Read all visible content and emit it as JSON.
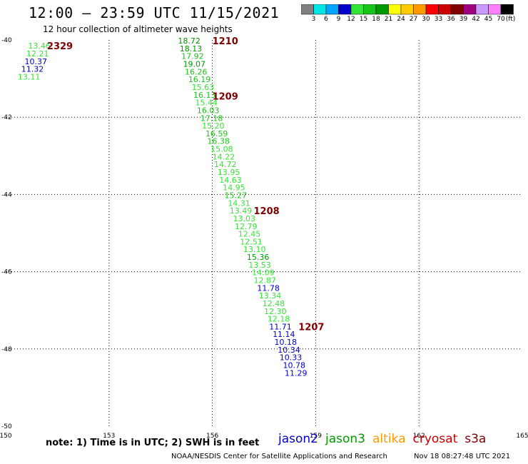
{
  "header": {
    "title": "12:00 – 23:59 UTC 11/15/2021",
    "subtitle": "12 hour collection of altimeter wave heights"
  },
  "colorbar": {
    "colors": [
      "#808080",
      "#00e5e5",
      "#00a6ff",
      "#0000cc",
      "#33e533",
      "#19c419",
      "#009900",
      "#ffff00",
      "#ffcc00",
      "#ff9900",
      "#ff0000",
      "#cc0000",
      "#800000",
      "#a0007f",
      "#cc99ff",
      "#ff80ff",
      "#000000"
    ],
    "labels": [
      "3",
      "6",
      "9",
      "12",
      "15",
      "18",
      "21",
      "24",
      "27",
      "30",
      "33",
      "36",
      "39",
      "42",
      "45",
      "70"
    ],
    "unit": "(ft)"
  },
  "note": "note: 1) Time is in UTC; 2) SWH is in feet",
  "legend": [
    {
      "name": "jason2",
      "color": "#0000cc"
    },
    {
      "name": "jason3",
      "color": "#009900"
    },
    {
      "name": "altika",
      "color": "#ff9900"
    },
    {
      "name": "cryosat",
      "color": "#cc0000"
    },
    {
      "name": "s3a",
      "color": "#800000"
    }
  ],
  "footer": {
    "left": "NOAA/NESDIS Center for Satellite Applications and Research",
    "right": "Nov 18 08:27:48 UTC 2021"
  },
  "chart_data": {
    "type": "scatter",
    "xlim": [
      150,
      165
    ],
    "ylim": [
      -50,
      -40
    ],
    "x_ticks": [
      150,
      153,
      156,
      159,
      162,
      165
    ],
    "x_tick_labels": [
      "150",
      "153",
      "156",
      "159",
      "162",
      "165"
    ],
    "y_ticks": [
      -40,
      -42,
      -44,
      -46,
      -48,
      -50
    ],
    "y_tick_labels": [
      "-40",
      "-42",
      "-44",
      "-46",
      "-48",
      "-50"
    ],
    "grid": true,
    "points": [
      {
        "x": 150.65,
        "y": -40.15,
        "value": "13.46",
        "color": "#33e533"
      },
      {
        "x": 150.6,
        "y": -40.35,
        "value": "12.21",
        "color": "#33e533"
      },
      {
        "x": 150.55,
        "y": -40.55,
        "value": "10.37",
        "color": "#0000cc"
      },
      {
        "x": 150.45,
        "y": -40.75,
        "value": "11.32",
        "color": "#0000cc"
      },
      {
        "x": 150.35,
        "y": -40.95,
        "value": "13.11",
        "color": "#33e533"
      },
      {
        "x": 155.0,
        "y": -40.02,
        "value": "18.72",
        "color": "#009900"
      },
      {
        "x": 155.05,
        "y": -40.22,
        "value": "18.13",
        "color": "#009900"
      },
      {
        "x": 155.1,
        "y": -40.42,
        "value": "17.92",
        "color": "#19c419"
      },
      {
        "x": 155.15,
        "y": -40.62,
        "value": "19.07",
        "color": "#009900"
      },
      {
        "x": 155.2,
        "y": -40.82,
        "value": "16.26",
        "color": "#19c419"
      },
      {
        "x": 155.3,
        "y": -41.02,
        "value": "16.19",
        "color": "#19c419"
      },
      {
        "x": 155.4,
        "y": -41.22,
        "value": "15.63",
        "color": "#33e533"
      },
      {
        "x": 155.45,
        "y": -41.42,
        "value": "16.13",
        "color": "#19c419"
      },
      {
        "x": 155.5,
        "y": -41.62,
        "value": "15.44",
        "color": "#33e533"
      },
      {
        "x": 155.55,
        "y": -41.82,
        "value": "16.03",
        "color": "#19c419"
      },
      {
        "x": 155.65,
        "y": -42.02,
        "value": "17.18",
        "color": "#19c419"
      },
      {
        "x": 155.7,
        "y": -42.22,
        "value": "15.20",
        "color": "#33e533"
      },
      {
        "x": 155.8,
        "y": -42.42,
        "value": "16.59",
        "color": "#19c419"
      },
      {
        "x": 155.85,
        "y": -42.62,
        "value": "16.38",
        "color": "#19c419"
      },
      {
        "x": 155.95,
        "y": -42.82,
        "value": "15.08",
        "color": "#33e533"
      },
      {
        "x": 156.0,
        "y": -43.02,
        "value": "14.22",
        "color": "#33e533"
      },
      {
        "x": 156.05,
        "y": -43.22,
        "value": "14.72",
        "color": "#33e533"
      },
      {
        "x": 156.15,
        "y": -43.42,
        "value": "13.95",
        "color": "#33e533"
      },
      {
        "x": 156.2,
        "y": -43.62,
        "value": "14.63",
        "color": "#33e533"
      },
      {
        "x": 156.3,
        "y": -43.82,
        "value": "14.95",
        "color": "#33e533"
      },
      {
        "x": 156.35,
        "y": -44.02,
        "value": "15.27",
        "color": "#19c419"
      },
      {
        "x": 156.45,
        "y": -44.22,
        "value": "14.31",
        "color": "#33e533"
      },
      {
        "x": 156.5,
        "y": -44.42,
        "value": "13.49",
        "color": "#33e533"
      },
      {
        "x": 156.6,
        "y": -44.62,
        "value": "13.03",
        "color": "#33e533"
      },
      {
        "x": 156.65,
        "y": -44.82,
        "value": "12.79",
        "color": "#33e533"
      },
      {
        "x": 156.75,
        "y": -45.02,
        "value": "12.45",
        "color": "#33e533"
      },
      {
        "x": 156.8,
        "y": -45.22,
        "value": "12.51",
        "color": "#33e533"
      },
      {
        "x": 156.9,
        "y": -45.42,
        "value": "13.10",
        "color": "#33e533"
      },
      {
        "x": 157.0,
        "y": -45.62,
        "value": "15.36",
        "color": "#009900"
      },
      {
        "x": 157.05,
        "y": -45.82,
        "value": "13.53",
        "color": "#33e533"
      },
      {
        "x": 157.15,
        "y": -46.02,
        "value": "14.09",
        "color": "#33e533"
      },
      {
        "x": 157.2,
        "y": -46.22,
        "value": "12.87",
        "color": "#33e533"
      },
      {
        "x": 157.3,
        "y": -46.42,
        "value": "11.78",
        "color": "#0000cc"
      },
      {
        "x": 157.35,
        "y": -46.62,
        "value": "13.34",
        "color": "#33e533"
      },
      {
        "x": 157.45,
        "y": -46.82,
        "value": "12.48",
        "color": "#33e533"
      },
      {
        "x": 157.5,
        "y": -47.02,
        "value": "12.30",
        "color": "#33e533"
      },
      {
        "x": 157.6,
        "y": -47.22,
        "value": "12.18",
        "color": "#33e533"
      },
      {
        "x": 157.65,
        "y": -47.42,
        "value": "11.71",
        "color": "#0000cc"
      },
      {
        "x": 157.75,
        "y": -47.62,
        "value": "11.14",
        "color": "#0000cc"
      },
      {
        "x": 157.8,
        "y": -47.82,
        "value": "10.18",
        "color": "#0000cc"
      },
      {
        "x": 157.9,
        "y": -48.02,
        "value": "10.34",
        "color": "#0000cc"
      },
      {
        "x": 157.95,
        "y": -48.22,
        "value": "10.33",
        "color": "#0000cc"
      },
      {
        "x": 158.05,
        "y": -48.42,
        "value": "10.78",
        "color": "#0000cc"
      },
      {
        "x": 158.1,
        "y": -48.62,
        "value": "11.29",
        "color": "#0000cc"
      }
    ],
    "time_labels": [
      {
        "x": 151.2,
        "y": -40.15,
        "text": "2329",
        "color": "#800000"
      },
      {
        "x": 156.0,
        "y": -40.02,
        "text": "1210",
        "color": "#800000"
      },
      {
        "x": 156.0,
        "y": -41.45,
        "text": "1209",
        "color": "#800000"
      },
      {
        "x": 157.2,
        "y": -44.42,
        "text": "1208",
        "color": "#800000"
      },
      {
        "x": 158.5,
        "y": -47.42,
        "text": "1207",
        "color": "#800000"
      }
    ]
  }
}
